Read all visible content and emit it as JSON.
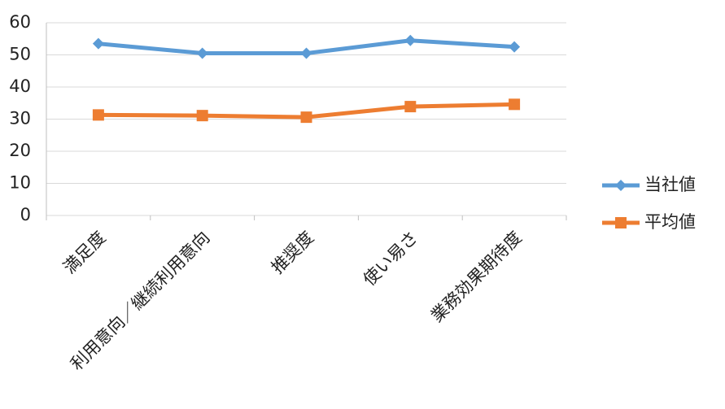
{
  "chart_data": {
    "type": "line",
    "categories": [
      "満足度",
      "利用意向／継続利用意向",
      "推奨度",
      "使い易さ",
      "業務効果期待度"
    ],
    "series": [
      {
        "name": "当社値",
        "color": "#5b9bd5",
        "marker": "diamond",
        "values": [
          53.5,
          50.5,
          50.5,
          54.5,
          52.5
        ]
      },
      {
        "name": "平均値",
        "color": "#ed7d31",
        "marker": "square",
        "values": [
          31.3,
          31.1,
          30.6,
          33.9,
          34.6
        ]
      }
    ],
    "ylim": [
      0,
      60
    ],
    "yticks": [
      0,
      10,
      20,
      30,
      40,
      50,
      60
    ],
    "grid": true,
    "legend": "right"
  }
}
